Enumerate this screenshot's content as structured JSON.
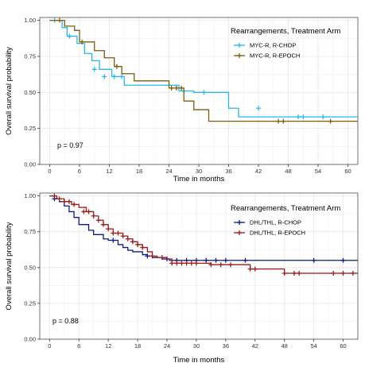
{
  "chart_data": [
    {
      "type": "line",
      "step": true,
      "xlabel": "Time in months",
      "ylabel": "Overall survival probability",
      "xlim": [
        -2,
        62
      ],
      "ylim": [
        0,
        1.02
      ],
      "x_ticks": [
        0,
        6,
        12,
        18,
        24,
        30,
        36,
        42,
        48,
        54,
        60
      ],
      "y_ticks": [
        0.0,
        0.25,
        0.5,
        0.75,
        1.0
      ],
      "y_tick_labels": [
        "0.00",
        "0.25",
        "0.50",
        "0.75",
        "1.00"
      ],
      "grid": true,
      "legend_title": "Rearrangements, Treatment Arm",
      "legend_position": "top-right",
      "annotation": "p = 0.97",
      "series": [
        {
          "name": "MYC-R, R-CHOP",
          "color": "#29b6e8",
          "x": [
            0,
            2.5,
            3.5,
            5.5,
            7,
            8.5,
            10,
            12.5,
            15,
            26,
            29,
            36,
            38,
            62
          ],
          "y": [
            1.0,
            0.95,
            0.89,
            0.84,
            0.77,
            0.72,
            0.66,
            0.61,
            0.55,
            0.51,
            0.5,
            0.39,
            0.33,
            0.33
          ],
          "censor_x": [
            1,
            4,
            9,
            11,
            13,
            14.5,
            27,
            31,
            42,
            50,
            51,
            55
          ],
          "censor_y": [
            1.0,
            0.89,
            0.66,
            0.61,
            0.61,
            0.61,
            0.51,
            0.5,
            0.39,
            0.33,
            0.33,
            0.33
          ]
        },
        {
          "name": "MYC-R, R-EPOCH",
          "color": "#7a5c0e",
          "x": [
            0,
            3,
            5,
            6,
            9,
            11,
            13,
            14.5,
            17,
            24,
            27,
            29,
            32,
            62
          ],
          "y": [
            1.0,
            0.96,
            0.93,
            0.85,
            0.79,
            0.74,
            0.68,
            0.63,
            0.58,
            0.53,
            0.44,
            0.38,
            0.3,
            0.3
          ],
          "censor_x": [
            2,
            6.5,
            13.5,
            24.5,
            25.5,
            26.5,
            46,
            47,
            56.5
          ],
          "censor_y": [
            1.0,
            0.85,
            0.68,
            0.53,
            0.53,
            0.53,
            0.3,
            0.3,
            0.3
          ]
        }
      ]
    },
    {
      "type": "line",
      "step": true,
      "xlabel": "Time in months",
      "ylabel": "Overall survival probability",
      "xlim": [
        -2,
        63
      ],
      "ylim": [
        0,
        1.02
      ],
      "x_ticks": [
        0,
        6,
        12,
        18,
        24,
        30,
        36,
        42,
        48,
        54,
        60
      ],
      "y_ticks": [
        0.0,
        0.25,
        0.5,
        0.75,
        1.0
      ],
      "y_tick_labels": [
        "0.00",
        "0.25",
        "0.50",
        "0.75",
        "1.00"
      ],
      "grid": true,
      "legend_title": "Rearrangements, Treatment Arm",
      "legend_position": "top-right",
      "annotation": "p = 0.88",
      "series": [
        {
          "name": "DHL/THL, R-CHOP",
          "color": "#0d1a82",
          "x": [
            0,
            1,
            2,
            3,
            4,
            5,
            6,
            8,
            9,
            11,
            12,
            14,
            15,
            16,
            17,
            19,
            20,
            21,
            23,
            24.5,
            63
          ],
          "y": [
            1.0,
            0.98,
            0.96,
            0.93,
            0.89,
            0.85,
            0.8,
            0.76,
            0.73,
            0.7,
            0.69,
            0.66,
            0.64,
            0.62,
            0.61,
            0.59,
            0.58,
            0.57,
            0.56,
            0.55,
            0.55
          ],
          "censor_x": [
            1,
            13,
            20,
            24,
            26,
            28,
            30,
            32,
            34,
            36,
            40,
            54,
            60
          ],
          "censor_y": [
            0.98,
            0.69,
            0.58,
            0.56,
            0.55,
            0.55,
            0.55,
            0.55,
            0.55,
            0.55,
            0.55,
            0.55,
            0.55
          ]
        },
        {
          "name": "DHL/THL, R-EPOCH",
          "color": "#9b1b1b",
          "x": [
            0,
            1.5,
            3,
            4.5,
            6,
            7.5,
            9,
            10,
            11,
            12,
            13,
            15,
            16,
            17,
            18,
            19,
            20,
            21,
            22,
            24,
            25,
            28,
            33,
            41,
            48,
            63
          ],
          "y": [
            1.0,
            0.98,
            0.96,
            0.94,
            0.92,
            0.89,
            0.86,
            0.83,
            0.8,
            0.77,
            0.74,
            0.72,
            0.7,
            0.68,
            0.66,
            0.64,
            0.61,
            0.58,
            0.57,
            0.56,
            0.53,
            0.53,
            0.52,
            0.49,
            0.46,
            0.46
          ],
          "censor_x": [
            1,
            2,
            3,
            4,
            5,
            7,
            8,
            9,
            10,
            11,
            12,
            13,
            14,
            15,
            16,
            17,
            18,
            19,
            21,
            23,
            25,
            26,
            27,
            28,
            29,
            30,
            33,
            35,
            37,
            41,
            42,
            48,
            50,
            51,
            58,
            60,
            62
          ],
          "censor_y": [
            1.0,
            0.98,
            0.96,
            0.96,
            0.94,
            0.89,
            0.89,
            0.86,
            0.83,
            0.8,
            0.77,
            0.74,
            0.74,
            0.72,
            0.7,
            0.68,
            0.66,
            0.64,
            0.58,
            0.57,
            0.53,
            0.53,
            0.53,
            0.53,
            0.53,
            0.53,
            0.52,
            0.52,
            0.52,
            0.49,
            0.49,
            0.46,
            0.46,
            0.46,
            0.46,
            0.46,
            0.46
          ]
        }
      ]
    }
  ]
}
